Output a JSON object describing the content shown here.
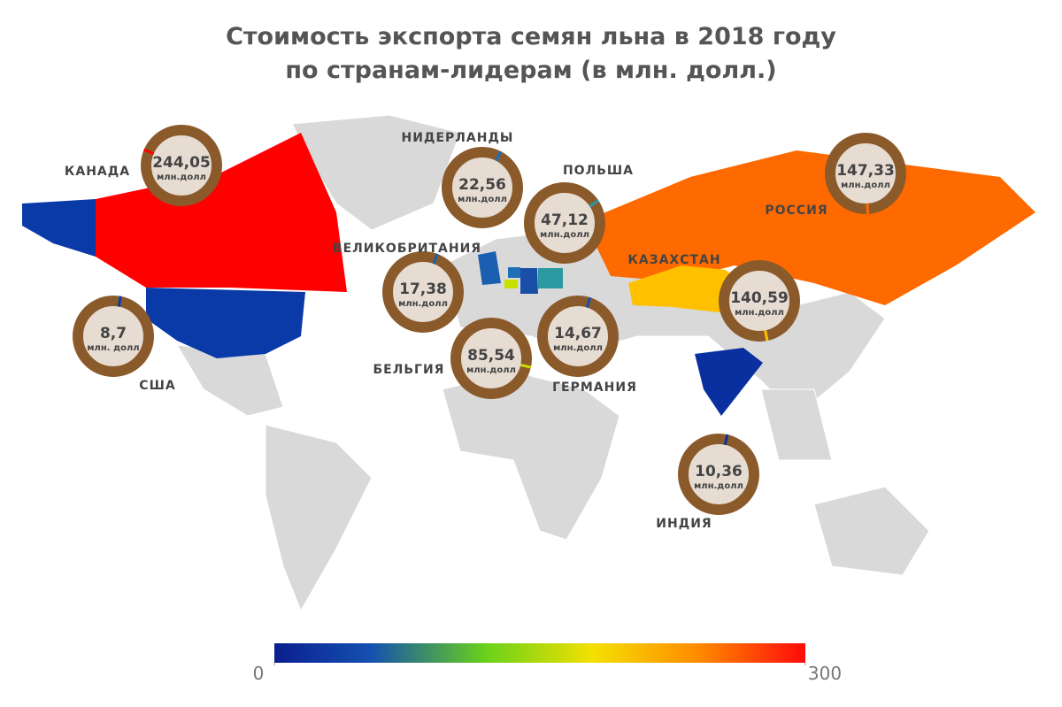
{
  "title_lines": [
    "Стоимость экспорта семян льна в 2018 году",
    "по странам-лидерам (в млн. долл.)"
  ],
  "colorbar": {
    "ticks": [
      0,
      300
    ]
  },
  "countries": [
    {
      "name": "КАНАДА",
      "value": 244.05,
      "value_label": "244,05",
      "unit": "млн.долл",
      "color": "#ff0000"
    },
    {
      "name": "США",
      "value": 8.7,
      "value_label": "8,7",
      "unit": "млн. долл",
      "color": "#0a3aa8"
    },
    {
      "name": "НИДЕРЛАНДЫ",
      "value": 22.56,
      "value_label": "22,56",
      "unit": "млн.долл",
      "color": "#1e6fb5"
    },
    {
      "name": "ПОЛЬША",
      "value": 47.12,
      "value_label": "47,12",
      "unit": "млн.долл",
      "color": "#2a9aa0"
    },
    {
      "name": "ВЕЛИКОБРИТАНИЯ",
      "value": 17.38,
      "value_label": "17,38",
      "unit": "млн.долл",
      "color": "#1a5fb0"
    },
    {
      "name": "БЕЛЬГИЯ",
      "value": 85.54,
      "value_label": "85,54",
      "unit": "млн.долл",
      "color": "#c8e000"
    },
    {
      "name": "ГЕРМАНИЯ",
      "value": 14.67,
      "value_label": "14,67",
      "unit": "млн.долл",
      "color": "#1a4fa8"
    },
    {
      "name": "РОССИЯ",
      "value": 147.33,
      "value_label": "147,33",
      "unit": "млн.долл",
      "color": "#ff6a00"
    },
    {
      "name": "КАЗАХСТАН",
      "value": 140.59,
      "value_label": "140,59",
      "unit": "млн.долл",
      "color": "#ffc000"
    },
    {
      "name": "ИНДИЯ",
      "value": 10.36,
      "value_label": "10,36",
      "unit": "млн.долл",
      "color": "#0a30a0"
    }
  ]
}
